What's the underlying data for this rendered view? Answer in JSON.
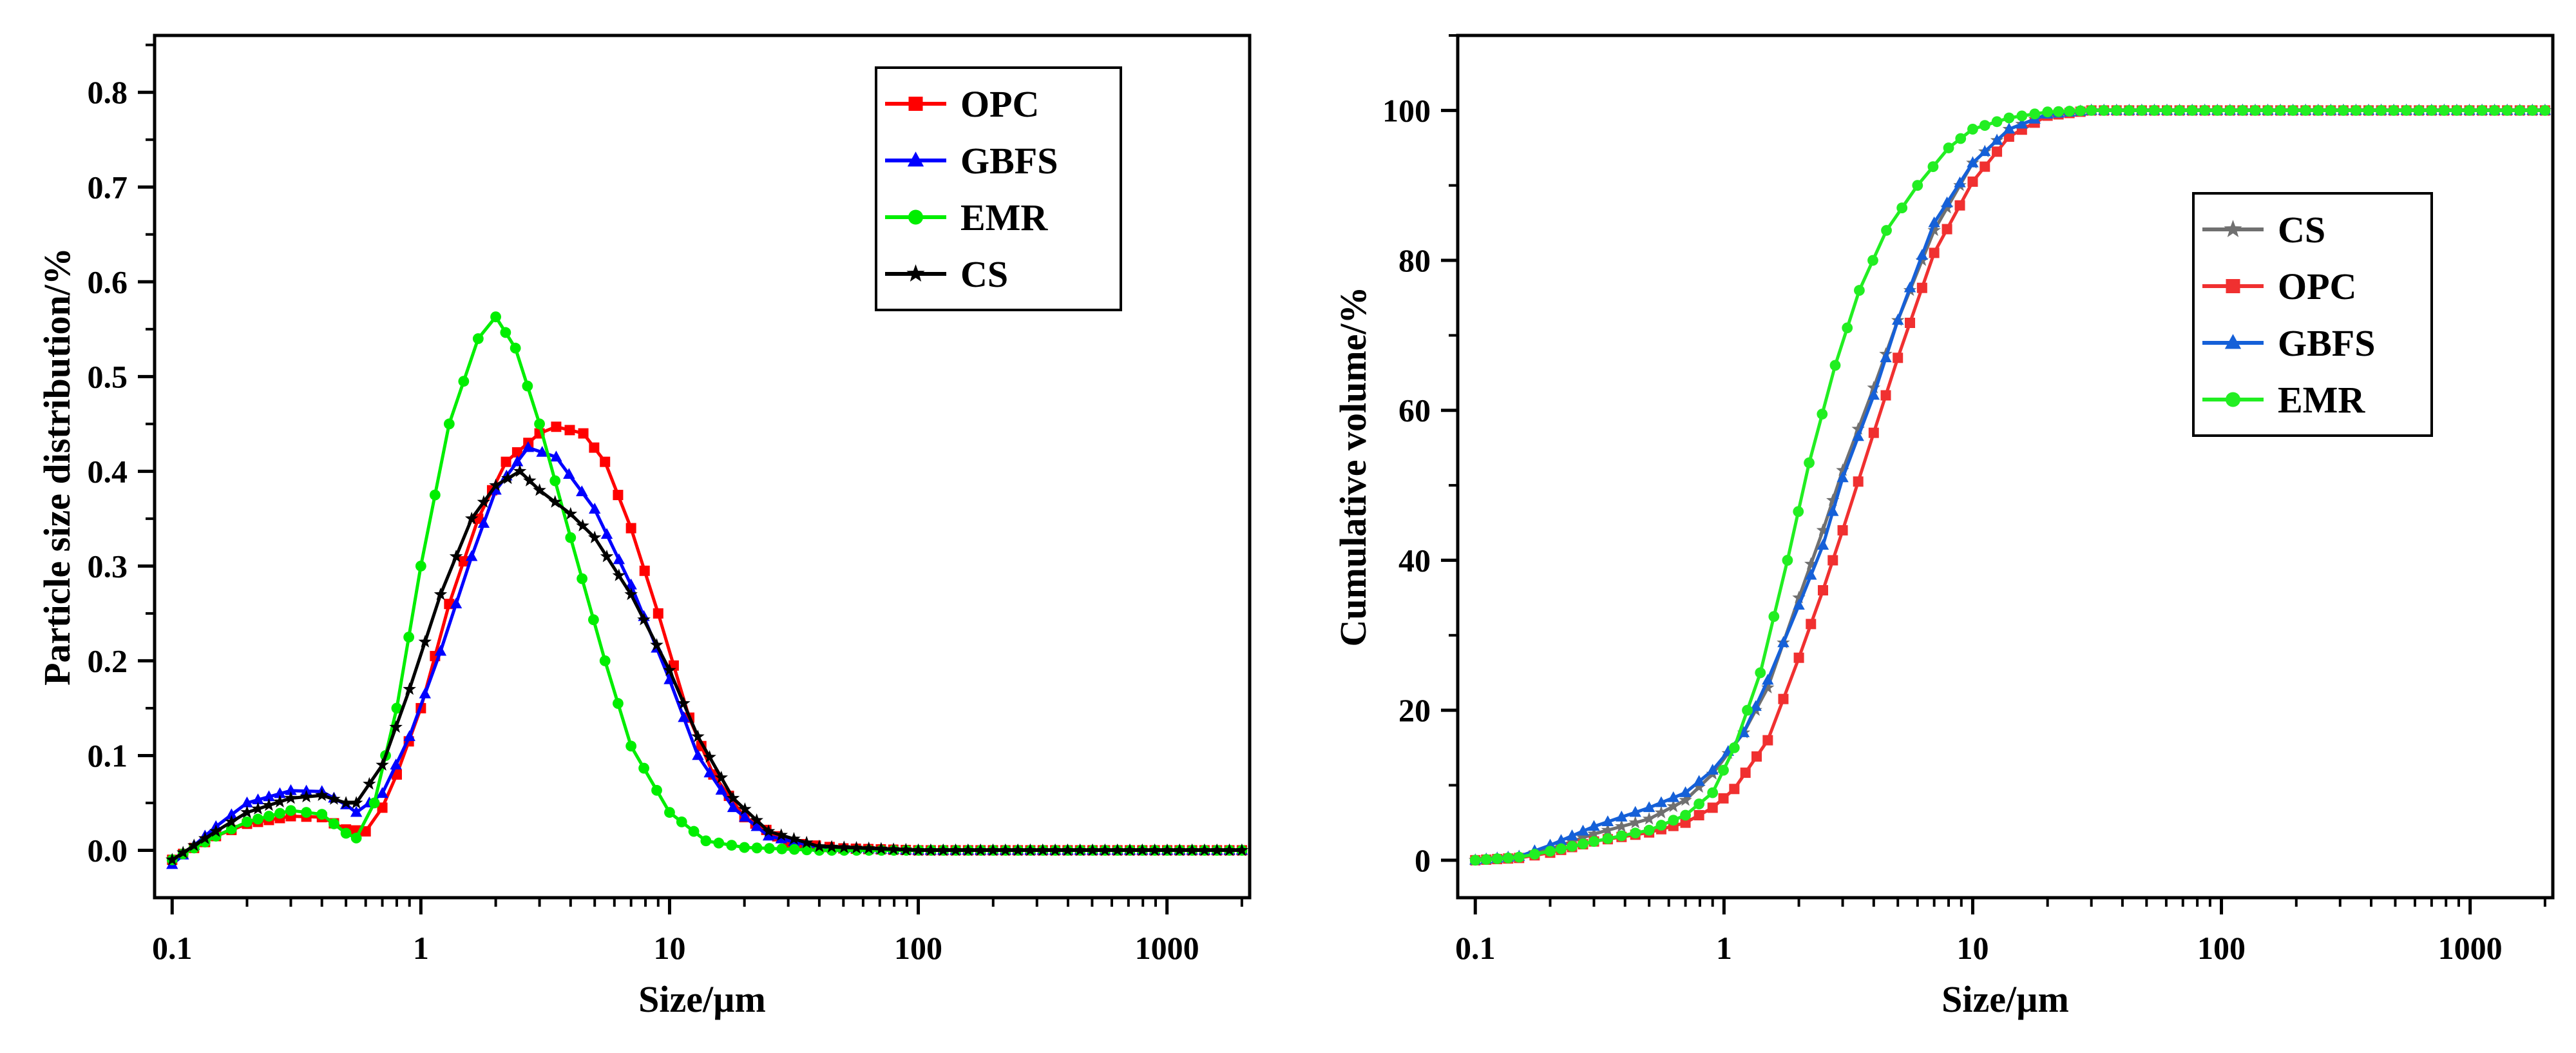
{
  "chart_data": [
    {
      "type": "line",
      "xscale": "log",
      "xlabel": "Size/µm",
      "ylabel": "Particle size distribution/%",
      "xlim": [
        0.085,
        2150
      ],
      "ylim": [
        -0.05,
        0.86
      ],
      "xticks": [
        0.1,
        1,
        10,
        100,
        1000
      ],
      "xtick_labels": [
        "0.1",
        "1",
        "10",
        "100",
        "1000"
      ],
      "yticks": [
        0.0,
        0.1,
        0.2,
        0.3,
        0.4,
        0.5,
        0.6,
        0.7,
        0.8
      ],
      "ytick_labels": [
        "0.0",
        "0.1",
        "0.2",
        "0.3",
        "0.4",
        "0.5",
        "0.6",
        "0.7",
        "0.8"
      ],
      "legend_position": "top-right",
      "grid": false,
      "series": [
        {
          "name": "OPC",
          "color": "#ff0000",
          "marker": "square",
          "points": [
            [
              0.1,
              -0.01
            ],
            [
              0.15,
              0.015
            ],
            [
              0.2,
              0.028
            ],
            [
              0.3,
              0.036
            ],
            [
              0.4,
              0.035
            ],
            [
              0.5,
              0.022
            ],
            [
              0.6,
              0.02
            ],
            [
              0.7,
              0.045
            ],
            [
              0.8,
              0.08
            ],
            [
              1.0,
              0.15
            ],
            [
              1.3,
              0.26
            ],
            [
              1.7,
              0.35
            ],
            [
              2.2,
              0.41
            ],
            [
              3.0,
              0.44
            ],
            [
              3.5,
              0.447
            ],
            [
              4.5,
              0.44
            ],
            [
              5.5,
              0.41
            ],
            [
              7,
              0.34
            ],
            [
              9,
              0.25
            ],
            [
              12,
              0.14
            ],
            [
              15,
              0.08
            ],
            [
              20,
              0.035
            ],
            [
              30,
              0.008
            ],
            [
              50,
              0.002
            ],
            [
              100,
              0.0
            ],
            [
              2000,
              0.0
            ]
          ]
        },
        {
          "name": "GBFS",
          "color": "#0000ff",
          "marker": "triangle",
          "points": [
            [
              0.1,
              -0.015
            ],
            [
              0.15,
              0.025
            ],
            [
              0.2,
              0.05
            ],
            [
              0.3,
              0.063
            ],
            [
              0.4,
              0.062
            ],
            [
              0.5,
              0.048
            ],
            [
              0.55,
              0.04
            ],
            [
              0.7,
              0.06
            ],
            [
              0.9,
              0.12
            ],
            [
              1.2,
              0.21
            ],
            [
              1.6,
              0.31
            ],
            [
              2.0,
              0.38
            ],
            [
              2.7,
              0.425
            ],
            [
              3.5,
              0.415
            ],
            [
              5,
              0.36
            ],
            [
              7,
              0.28
            ],
            [
              10,
              0.18
            ],
            [
              13,
              0.1
            ],
            [
              18,
              0.045
            ],
            [
              25,
              0.015
            ],
            [
              40,
              0.003
            ],
            [
              100,
              0.0
            ],
            [
              2000,
              0.0
            ]
          ]
        },
        {
          "name": "EMR",
          "color": "#00ee00",
          "marker": "circle",
          "points": [
            [
              0.1,
              -0.01
            ],
            [
              0.15,
              0.015
            ],
            [
              0.2,
              0.03
            ],
            [
              0.3,
              0.042
            ],
            [
              0.4,
              0.038
            ],
            [
              0.5,
              0.018
            ],
            [
              0.55,
              0.013
            ],
            [
              0.65,
              0.05
            ],
            [
              0.8,
              0.15
            ],
            [
              1.0,
              0.3
            ],
            [
              1.3,
              0.45
            ],
            [
              1.7,
              0.54
            ],
            [
              2.0,
              0.563
            ],
            [
              2.4,
              0.53
            ],
            [
              3.0,
              0.45
            ],
            [
              4.0,
              0.33
            ],
            [
              5.5,
              0.2
            ],
            [
              7,
              0.11
            ],
            [
              10,
              0.04
            ],
            [
              14,
              0.01
            ],
            [
              20,
              0.003
            ],
            [
              40,
              0.0
            ],
            [
              2000,
              0.0
            ]
          ]
        },
        {
          "name": "CS",
          "color": "#000000",
          "marker": "star",
          "points": [
            [
              0.1,
              -0.01
            ],
            [
              0.15,
              0.02
            ],
            [
              0.2,
              0.04
            ],
            [
              0.3,
              0.055
            ],
            [
              0.4,
              0.058
            ],
            [
              0.5,
              0.05
            ],
            [
              0.55,
              0.05
            ],
            [
              0.7,
              0.09
            ],
            [
              0.9,
              0.17
            ],
            [
              1.2,
              0.27
            ],
            [
              1.6,
              0.35
            ],
            [
              2.0,
              0.385
            ],
            [
              2.5,
              0.4
            ],
            [
              3.0,
              0.38
            ],
            [
              4.0,
              0.355
            ],
            [
              5.0,
              0.33
            ],
            [
              7,
              0.27
            ],
            [
              10,
              0.19
            ],
            [
              13,
              0.12
            ],
            [
              18,
              0.055
            ],
            [
              25,
              0.02
            ],
            [
              40,
              0.004
            ],
            [
              100,
              0.0
            ],
            [
              2000,
              0.0
            ]
          ]
        }
      ]
    },
    {
      "type": "line",
      "xscale": "log",
      "xlabel": "Size/µm",
      "ylabel": "Cumulative volume/%",
      "xlim": [
        0.085,
        2150
      ],
      "ylim": [
        -5,
        110
      ],
      "xticks": [
        0.1,
        1,
        10,
        100,
        1000
      ],
      "xtick_labels": [
        "0.1",
        "1",
        "10",
        "100",
        "1000"
      ],
      "yticks": [
        0,
        20,
        40,
        60,
        80,
        100
      ],
      "ytick_labels": [
        "0",
        "20",
        "40",
        "60",
        "80",
        "100"
      ],
      "legend_position": "middle-right",
      "grid": false,
      "series": [
        {
          "name": "CS",
          "color": "#707070",
          "marker": "star",
          "points": [
            [
              0.1,
              0
            ],
            [
              0.15,
              0.5
            ],
            [
              0.2,
              1.5
            ],
            [
              0.3,
              3.5
            ],
            [
              0.5,
              5.5
            ],
            [
              0.7,
              8
            ],
            [
              0.9,
              11.5
            ],
            [
              1.2,
              17
            ],
            [
              1.5,
              23
            ],
            [
              2.0,
              35
            ],
            [
              2.5,
              44
            ],
            [
              3.0,
              52
            ],
            [
              4.0,
              63
            ],
            [
              5.0,
              72
            ],
            [
              7,
              84
            ],
            [
              10,
              93
            ],
            [
              14,
              97.5
            ],
            [
              20,
              99.5
            ],
            [
              30,
              100
            ],
            [
              2000,
              100
            ]
          ]
        },
        {
          "name": "OPC",
          "color": "#f03030",
          "marker": "square",
          "points": [
            [
              0.1,
              0
            ],
            [
              0.15,
              0.3
            ],
            [
              0.2,
              1
            ],
            [
              0.3,
              2.5
            ],
            [
              0.5,
              3.7
            ],
            [
              0.7,
              5
            ],
            [
              0.9,
              7
            ],
            [
              1.1,
              9.5
            ],
            [
              1.5,
              16
            ],
            [
              2.0,
              27
            ],
            [
              2.5,
              36
            ],
            [
              3.0,
              44
            ],
            [
              4.0,
              57
            ],
            [
              5.0,
              67
            ],
            [
              7,
              81
            ],
            [
              10,
              90.5
            ],
            [
              14,
              96.5
            ],
            [
              20,
              99.3
            ],
            [
              30,
              100
            ],
            [
              2000,
              100
            ]
          ]
        },
        {
          "name": "GBFS",
          "color": "#1560d8",
          "marker": "triangle",
          "points": [
            [
              0.1,
              0
            ],
            [
              0.15,
              0.5
            ],
            [
              0.2,
              2
            ],
            [
              0.3,
              4.5
            ],
            [
              0.5,
              7
            ],
            [
              0.7,
              9
            ],
            [
              0.9,
              12
            ],
            [
              1.2,
              17
            ],
            [
              1.5,
              24
            ],
            [
              2.0,
              34
            ],
            [
              2.5,
              42
            ],
            [
              3.0,
              51
            ],
            [
              4.0,
              62
            ],
            [
              5.0,
              72
            ],
            [
              7,
              85
            ],
            [
              10,
              93
            ],
            [
              14,
              97.5
            ],
            [
              20,
              99.5
            ],
            [
              30,
              100
            ],
            [
              2000,
              100
            ]
          ]
        },
        {
          "name": "EMR",
          "color": "#22ee22",
          "marker": "circle",
          "points": [
            [
              0.1,
              0
            ],
            [
              0.15,
              0.4
            ],
            [
              0.2,
              1.2
            ],
            [
              0.3,
              2.5
            ],
            [
              0.5,
              4
            ],
            [
              0.7,
              6
            ],
            [
              0.9,
              9
            ],
            [
              1.1,
              15
            ],
            [
              1.4,
              25
            ],
            [
              1.8,
              40
            ],
            [
              2.2,
              53
            ],
            [
              2.8,
              66
            ],
            [
              3.5,
              76
            ],
            [
              4.5,
              84
            ],
            [
              6,
              90
            ],
            [
              8,
              95
            ],
            [
              10,
              97.5
            ],
            [
              14,
              99
            ],
            [
              20,
              99.8
            ],
            [
              30,
              100
            ],
            [
              2000,
              100
            ]
          ]
        }
      ]
    }
  ]
}
